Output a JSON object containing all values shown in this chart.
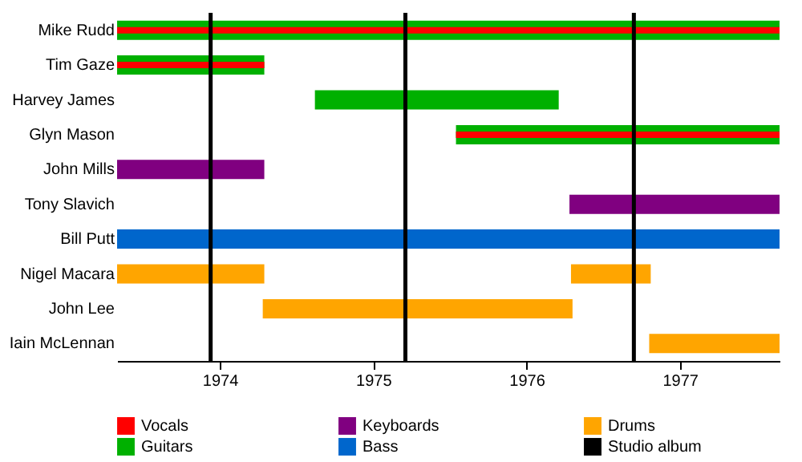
{
  "chart_data": {
    "type": "bar",
    "orientation": "horizontal",
    "categories": [
      "Mike Rudd",
      "Tim Gaze",
      "Harvey James",
      "Glyn Mason",
      "John Mills",
      "Tony Slavich",
      "Bill Putt",
      "Nigel Macara",
      "John Lee",
      "Iain McLennan"
    ],
    "series": [
      {
        "name": "Vocals",
        "color": "#ff0000",
        "base": [
          1973.33,
          1973.33,
          null,
          1975.54,
          null,
          null,
          null,
          null,
          null,
          null
        ],
        "values": [
          4.32,
          0.96,
          null,
          2.11,
          null,
          null,
          null,
          null,
          null,
          null
        ]
      },
      {
        "name": "Keyboards",
        "color": "#800080",
        "base": [
          null,
          null,
          null,
          null,
          1973.33,
          1976.28,
          null,
          null,
          null,
          null
        ],
        "values": [
          null,
          null,
          null,
          null,
          0.96,
          1.37,
          null,
          null,
          null,
          null
        ]
      },
      {
        "name": "Drums",
        "color": "#ffa500",
        "base": [
          null,
          null,
          null,
          null,
          null,
          null,
          null,
          1973.33,
          1974.28,
          1976.8
        ],
        "values": [
          null,
          null,
          null,
          null,
          null,
          null,
          null,
          0.96,
          2.02,
          0.85
        ]
      },
      {
        "name": "Guitars",
        "color": "#00b000",
        "base": [
          1973.33,
          1973.33,
          1974.62,
          1975.54,
          null,
          null,
          null,
          null,
          null,
          null
        ],
        "values": [
          4.32,
          0.96,
          1.59,
          2.11,
          null,
          null,
          null,
          null,
          null,
          null
        ]
      },
      {
        "name": "Bass",
        "color": "#0066cc",
        "base": [
          null,
          null,
          null,
          null,
          null,
          null,
          1973.33,
          null,
          null,
          null
        ],
        "values": [
          null,
          null,
          null,
          null,
          null,
          null,
          4.32,
          null,
          null,
          null
        ]
      },
      {
        "color": "#ffa500",
        "base": [
          null,
          null,
          null,
          null,
          null,
          null,
          null,
          1976.29,
          null,
          null
        ],
        "values": [
          null,
          null,
          null,
          null,
          null,
          null,
          null,
          0.52,
          null,
          null
        ]
      }
    ],
    "xlim": [
      1973.33,
      1977.65
    ],
    "xticks": [
      1974,
      1975,
      1976,
      1977
    ],
    "ref_lines": [
      {
        "axis": "x",
        "value": 1973.94,
        "label": "Studio album",
        "color": "#000000"
      },
      {
        "axis": "x",
        "value": 1975.21,
        "color": "#000000"
      },
      {
        "axis": "x",
        "value": 1976.7,
        "color": "#000000"
      }
    ],
    "grid": false,
    "legend": "bottom"
  }
}
